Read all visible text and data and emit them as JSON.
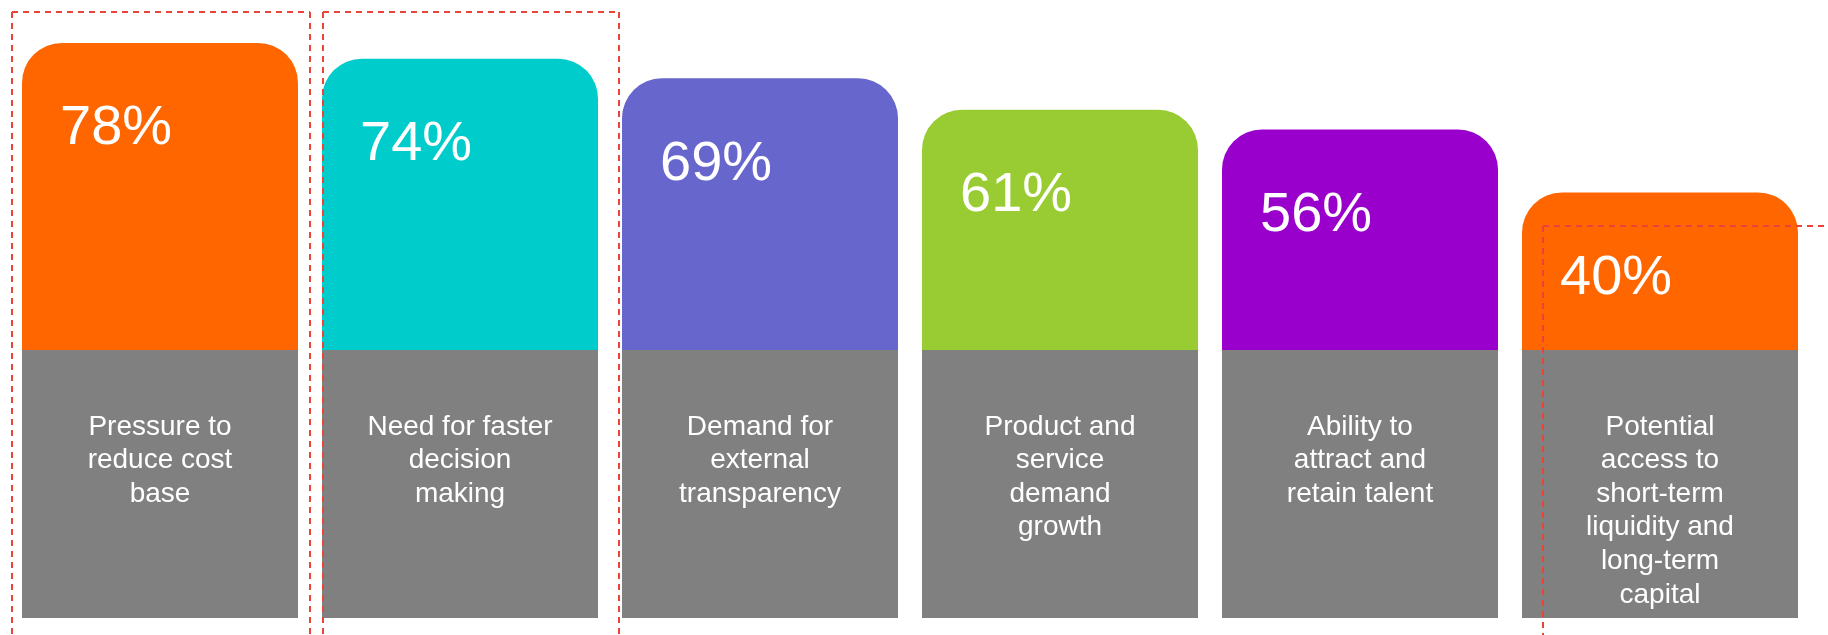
{
  "chart_data": {
    "type": "bar",
    "categories": [
      "Pressure to reduce cost base",
      "Need for faster decision making",
      "Demand for external transparency",
      "Product and service demand growth",
      "Ability to attract and retain talent",
      "Potential access to short-term liquidity and long-term capital"
    ],
    "values": [
      78,
      74,
      69,
      61,
      56,
      40
    ],
    "colors": [
      "#ff6600",
      "#00cccc",
      "#6666cc",
      "#99cc33",
      "#9900cc",
      "#ff6600"
    ],
    "value_labels": [
      "78%",
      "74%",
      "69%",
      "61%",
      "56%",
      "40%"
    ],
    "legend": false
  }
}
